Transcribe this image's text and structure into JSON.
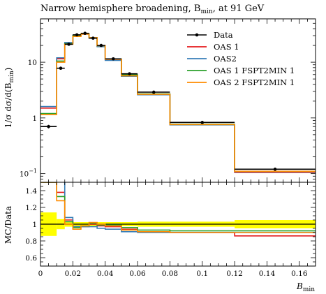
{
  "chart_data": {
    "type": "line",
    "title": "Narrow hemisphere broadening, B",
    "title_sub": "min",
    "title_tail": ", at 91 GeV",
    "xlabel": "B",
    "xlabel_sub": "min",
    "ylabel_main": "1/σ dσ/d(B",
    "ylabel_main_sub": "min",
    "ylabel_main_tail": ")",
    "ylabel_ratio": "MC/Data",
    "xlim": [
      0,
      0.17
    ],
    "ylim_main": [
      0.07,
      60
    ],
    "y_scale_main": "log",
    "ylim_ratio": [
      0.5,
      1.5
    ],
    "x_tick_labels": [
      "0",
      "0.02",
      "0.04",
      "0.06",
      "0.08",
      "0.1",
      "0.12",
      "0.14",
      "0.16"
    ],
    "x_ticks": [
      0,
      0.02,
      0.04,
      0.06,
      0.08,
      0.1,
      0.12,
      0.14,
      0.16
    ],
    "y_main_tick_labels": [
      "10^{-1}",
      "1",
      "10"
    ],
    "y_ratio_tick_labels": [
      "0.6",
      "0.8",
      "1",
      "1.2",
      "1.4"
    ],
    "y_ratio_ticks": [
      0.6,
      0.8,
      1.0,
      1.2,
      1.4
    ],
    "legend_position": "top-right",
    "bin_edges": [
      0,
      0.01,
      0.015,
      0.02,
      0.025,
      0.03,
      0.035,
      0.04,
      0.05,
      0.06,
      0.08,
      0.12,
      0.17
    ],
    "data": {
      "name": "Data",
      "color": "#000000",
      "values": [
        0.7,
        7.8,
        21,
        31,
        33,
        27,
        20,
        11.5,
        6.2,
        2.9,
        0.83,
        0.12
      ],
      "errors": [
        0.05,
        0.3,
        0.6,
        0.8,
        0.8,
        0.7,
        0.5,
        0.3,
        0.15,
        0.06,
        0.02,
        0.004
      ]
    },
    "series": [
      {
        "name": "OAS 1",
        "color": "#e41a1c",
        "values": [
          1.5,
          11.5,
          22,
          30,
          32,
          27.5,
          19.5,
          11.2,
          5.9,
          2.65,
          0.76,
          0.105
        ],
        "ratio": [
          1.5,
          1.38,
          1.05,
          0.97,
          0.97,
          1.0,
          0.98,
          0.97,
          0.94,
          0.91,
          0.9,
          0.86
        ]
      },
      {
        "name": "OAS2",
        "color": "#377eb8",
        "values": [
          1.6,
          12,
          22.5,
          30.5,
          32,
          27,
          19,
          10.8,
          5.6,
          2.6,
          0.75,
          0.108
        ],
        "ratio": [
          1.5,
          1.55,
          1.08,
          0.97,
          0.97,
          0.97,
          0.95,
          0.94,
          0.91,
          0.9,
          0.9,
          0.9
        ]
      },
      {
        "name": "OAS 1 FSPT2MIN 1",
        "color": "#2ca02c",
        "values": [
          1.2,
          10.5,
          21.5,
          30,
          32.5,
          27.5,
          19.8,
          11.4,
          5.9,
          2.7,
          0.77,
          0.11
        ],
        "ratio": [
          1.5,
          1.33,
          1.03,
          0.96,
          0.98,
          1.01,
          0.99,
          0.99,
          0.96,
          0.93,
          0.92,
          0.92
        ]
      },
      {
        "name": "OAS 2 FSPT2MIN 1",
        "color": "#ff8c00",
        "values": [
          1.15,
          10,
          21,
          29,
          32,
          27.5,
          19.8,
          11.3,
          5.7,
          2.65,
          0.76,
          0.11
        ],
        "ratio": [
          1.5,
          1.28,
          1.0,
          0.94,
          0.98,
          1.02,
          1.0,
          0.98,
          0.93,
          0.91,
          0.9,
          0.9
        ]
      }
    ],
    "ratio_band": {
      "color": "#ffff00",
      "half_widths": [
        0.14,
        0.06,
        0.03,
        0.025,
        0.025,
        0.025,
        0.025,
        0.025,
        0.025,
        0.03,
        0.03,
        0.05
      ]
    }
  }
}
